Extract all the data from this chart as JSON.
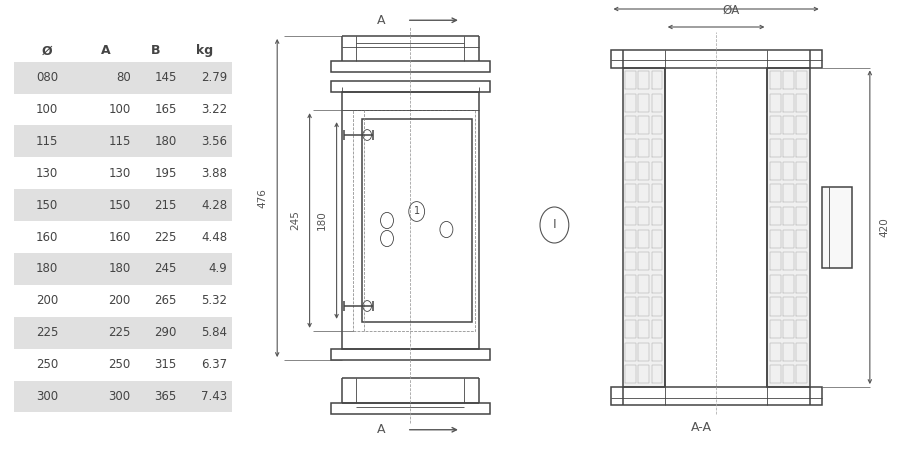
{
  "table_headers": [
    "Ø",
    "A",
    "B",
    "kg"
  ],
  "table_data": [
    [
      "080",
      "80",
      "145",
      "2.79"
    ],
    [
      "100",
      "100",
      "165",
      "3.22"
    ],
    [
      "115",
      "115",
      "180",
      "3.56"
    ],
    [
      "130",
      "130",
      "195",
      "3.88"
    ],
    [
      "150",
      "150",
      "215",
      "4.28"
    ],
    [
      "160",
      "160",
      "225",
      "4.48"
    ],
    [
      "180",
      "180",
      "245",
      "4.9"
    ],
    [
      "200",
      "200",
      "265",
      "5.32"
    ],
    [
      "225",
      "225",
      "290",
      "5.84"
    ],
    [
      "250",
      "250",
      "315",
      "6.37"
    ],
    [
      "300",
      "300",
      "365",
      "7.43"
    ]
  ],
  "shaded_rows": [
    0,
    2,
    4,
    6,
    8,
    10
  ],
  "row_bg_shaded": "#e0e0e0",
  "row_bg_white": "#ffffff",
  "text_color": "#444444",
  "line_color": "#444444",
  "dim_color": "#555555",
  "bg_color": "#ffffff"
}
